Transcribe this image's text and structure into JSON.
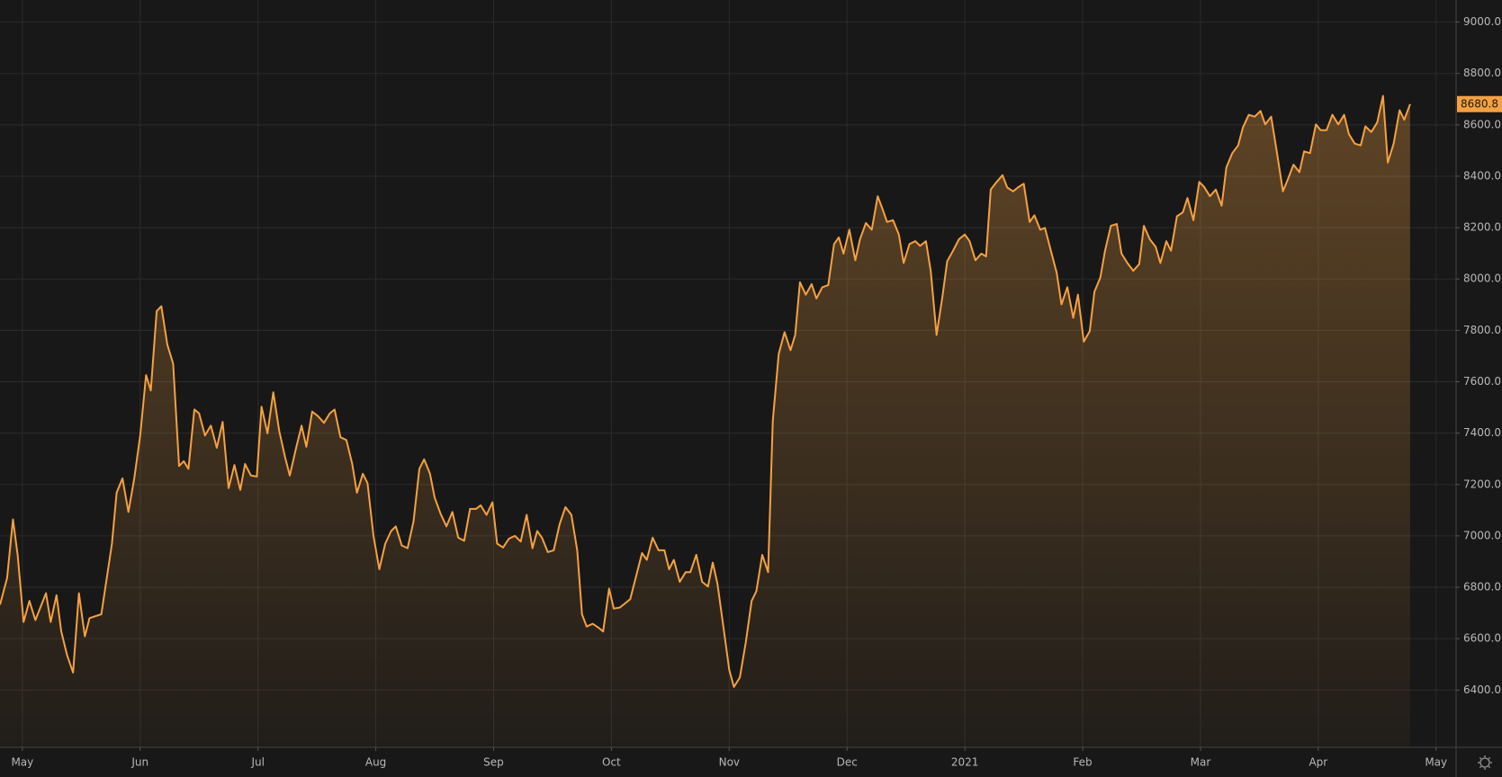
{
  "chart_data": {
    "type": "area",
    "color": "#f5a142",
    "x": [
      -0.19,
      -0.13,
      -0.08,
      -0.04,
      0.01,
      0.06,
      0.11,
      0.2,
      0.24,
      0.29,
      0.33,
      0.38,
      0.43,
      0.48,
      0.53,
      0.57,
      0.67,
      0.76,
      0.8,
      0.85,
      0.9,
      0.95,
      1.0,
      1.05,
      1.09,
      1.14,
      1.18,
      1.23,
      1.28,
      1.33,
      1.37,
      1.41,
      1.46,
      1.5,
      1.55,
      1.6,
      1.65,
      1.7,
      1.75,
      1.8,
      1.85,
      1.89,
      1.94,
      1.99,
      2.03,
      2.08,
      2.13,
      2.18,
      2.23,
      2.27,
      2.32,
      2.37,
      2.41,
      2.46,
      2.51,
      2.56,
      2.61,
      2.65,
      2.7,
      2.75,
      2.8,
      2.84,
      2.89,
      2.93,
      2.98,
      3.03,
      3.08,
      3.13,
      3.17,
      3.22,
      3.27,
      3.32,
      3.37,
      3.41,
      3.46,
      3.5,
      3.55,
      3.6,
      3.65,
      3.7,
      3.75,
      3.8,
      3.85,
      3.89,
      3.94,
      3.99,
      4.03,
      4.08,
      4.13,
      4.18,
      4.23,
      4.28,
      4.33,
      4.37,
      4.41,
      4.46,
      4.51,
      4.56,
      4.61,
      4.66,
      4.71,
      4.75,
      4.79,
      4.84,
      4.89,
      4.93,
      4.98,
      5.02,
      5.07,
      5.12,
      5.16,
      5.21,
      5.26,
      5.3,
      5.35,
      5.4,
      5.45,
      5.49,
      5.53,
      5.58,
      5.63,
      5.67,
      5.72,
      5.77,
      5.82,
      5.86,
      5.9,
      5.95,
      6.0,
      6.04,
      6.09,
      6.14,
      6.19,
      6.23,
      6.28,
      6.33,
      6.37,
      6.42,
      6.47,
      6.52,
      6.56,
      6.6,
      6.65,
      6.7,
      6.74,
      6.79,
      6.84,
      6.89,
      6.93,
      6.97,
      7.02,
      7.07,
      7.11,
      7.16,
      7.21,
      7.26,
      7.3,
      7.34,
      7.39,
      7.44,
      7.48,
      7.53,
      7.58,
      7.62,
      7.67,
      7.71,
      7.76,
      7.81,
      7.85,
      7.9,
      7.95,
      8.0,
      8.04,
      8.09,
      8.14,
      8.18,
      8.22,
      8.27,
      8.32,
      8.36,
      8.41,
      8.45,
      8.5,
      8.55,
      8.59,
      8.64,
      8.68,
      8.73,
      8.78,
      8.82,
      8.87,
      8.92,
      8.96,
      9.01,
      9.06,
      9.1,
      9.15,
      9.19,
      9.24,
      9.29,
      9.33,
      9.38,
      9.43,
      9.48,
      9.52,
      9.57,
      9.62,
      9.66,
      9.71,
      9.75,
      9.8,
      9.85,
      9.89,
      9.94,
      9.99,
      10.03,
      10.08,
      10.13,
      10.18,
      10.22,
      10.27,
      10.32,
      10.36,
      10.41,
      10.46,
      10.51,
      10.55,
      10.6,
      10.65,
      10.7,
      10.74,
      10.79,
      10.84,
      10.88,
      10.93,
      10.98,
      11.02,
      11.07,
      11.12,
      11.17,
      11.22,
      11.26,
      11.31,
      11.36,
      11.4,
      11.45,
      11.5,
      11.55,
      11.59,
      11.64,
      11.69,
      11.73,
      11.78
    ],
    "values": [
      6732,
      6836,
      7064,
      6926,
      6665,
      6747,
      6672,
      6777,
      6665,
      6769,
      6628,
      6535,
      6468,
      6777,
      6609,
      6680,
      6695,
      6970,
      7168,
      7224,
      7093,
      7224,
      7391,
      7626,
      7566,
      7875,
      7894,
      7745,
      7670,
      7272,
      7291,
      7261,
      7492,
      7477,
      7391,
      7429,
      7343,
      7444,
      7186,
      7276,
      7179,
      7280,
      7235,
      7231,
      7503,
      7399,
      7559,
      7410,
      7306,
      7235,
      7336,
      7429,
      7347,
      7484,
      7466,
      7440,
      7477,
      7492,
      7384,
      7373,
      7280,
      7168,
      7242,
      7205,
      7000,
      6870,
      6970,
      7019,
      7037,
      6963,
      6952,
      7056,
      7261,
      7298,
      7242,
      7149,
      7086,
      7037,
      7093,
      6993,
      6981,
      7105,
      7105,
      7119,
      7082,
      7131,
      6970,
      6955,
      6989,
      7000,
      6978,
      7082,
      6952,
      7019,
      6993,
      6937,
      6944,
      7045,
      7112,
      7082,
      6944,
      6695,
      6647,
      6658,
      6643,
      6628,
      6795,
      6717,
      6721,
      6739,
      6754,
      6844,
      6933,
      6907,
      6993,
      6944,
      6944,
      6870,
      6907,
      6821,
      6859,
      6859,
      6926,
      6821,
      6803,
      6896,
      6814,
      6647,
      6479,
      6412,
      6449,
      6583,
      6747,
      6784,
      6926,
      6859,
      7447,
      7708,
      7793,
      7723,
      7782,
      7987,
      7939,
      7980,
      7924,
      7968,
      7976,
      8136,
      8162,
      8099,
      8192,
      8073,
      8155,
      8218,
      8192,
      8322,
      8274,
      8222,
      8229,
      8173,
      8062,
      8136,
      8147,
      8129,
      8147,
      8032,
      7782,
      7931,
      8069,
      8110,
      8155,
      8173,
      8147,
      8073,
      8099,
      8088,
      8348,
      8378,
      8404,
      8356,
      8341,
      8356,
      8371,
      8222,
      8248,
      8192,
      8199,
      8110,
      8024,
      7901,
      7968,
      7849,
      7939,
      7756,
      7797,
      7950,
      8006,
      8110,
      8207,
      8214,
      8099,
      8062,
      8032,
      8058,
      8207,
      8155,
      8125,
      8062,
      8147,
      8110,
      8244,
      8259,
      8315,
      8229,
      8378,
      8359,
      8322,
      8348,
      8285,
      8434,
      8490,
      8520,
      8590,
      8639,
      8632,
      8654,
      8602,
      8632,
      8490,
      8341,
      8386,
      8445,
      8416,
      8497,
      8490,
      8602,
      8579,
      8579,
      8639,
      8602,
      8639,
      8564,
      8527,
      8520,
      8594,
      8572,
      8609,
      8713,
      8453,
      8527,
      8657,
      8620,
      8680.8
    ],
    "last_price_label": {
      "value": 8680.8,
      "label": "8680.8"
    },
    "xlim": [
      -0.19,
      12.17
    ],
    "xticks": [
      {
        "value": 0,
        "label": "May"
      },
      {
        "value": 1,
        "label": "Jun"
      },
      {
        "value": 2,
        "label": "Jul"
      },
      {
        "value": 3,
        "label": "Aug"
      },
      {
        "value": 4,
        "label": "Sep"
      },
      {
        "value": 5,
        "label": "Oct"
      },
      {
        "value": 6,
        "label": "Nov"
      },
      {
        "value": 7,
        "label": "Dec"
      },
      {
        "value": 8,
        "label": "2021"
      },
      {
        "value": 9,
        "label": "Feb"
      },
      {
        "value": 10,
        "label": "Mar"
      },
      {
        "value": 11,
        "label": "Apr"
      },
      {
        "value": 12,
        "label": "May"
      }
    ],
    "ylim": [
      6177,
      9086
    ],
    "yticks": [
      {
        "value": 6400,
        "label": "6400.0"
      },
      {
        "value": 6600,
        "label": "6600.0"
      },
      {
        "value": 6800,
        "label": "6800.0"
      },
      {
        "value": 7000,
        "label": "7000.0"
      },
      {
        "value": 7200,
        "label": "7200.0"
      },
      {
        "value": 7400,
        "label": "7400.0"
      },
      {
        "value": 7600,
        "label": "7600.0"
      },
      {
        "value": 7800,
        "label": "7800.0"
      },
      {
        "value": 8000,
        "label": "8000.0"
      },
      {
        "value": 8200,
        "label": "8200.0"
      },
      {
        "value": 8400,
        "label": "8400.0"
      },
      {
        "value": 8600,
        "label": "8600.0"
      },
      {
        "value": 8800,
        "label": "8800.0"
      },
      {
        "value": 9000,
        "label": "9000.0"
      }
    ],
    "grid": true
  }
}
